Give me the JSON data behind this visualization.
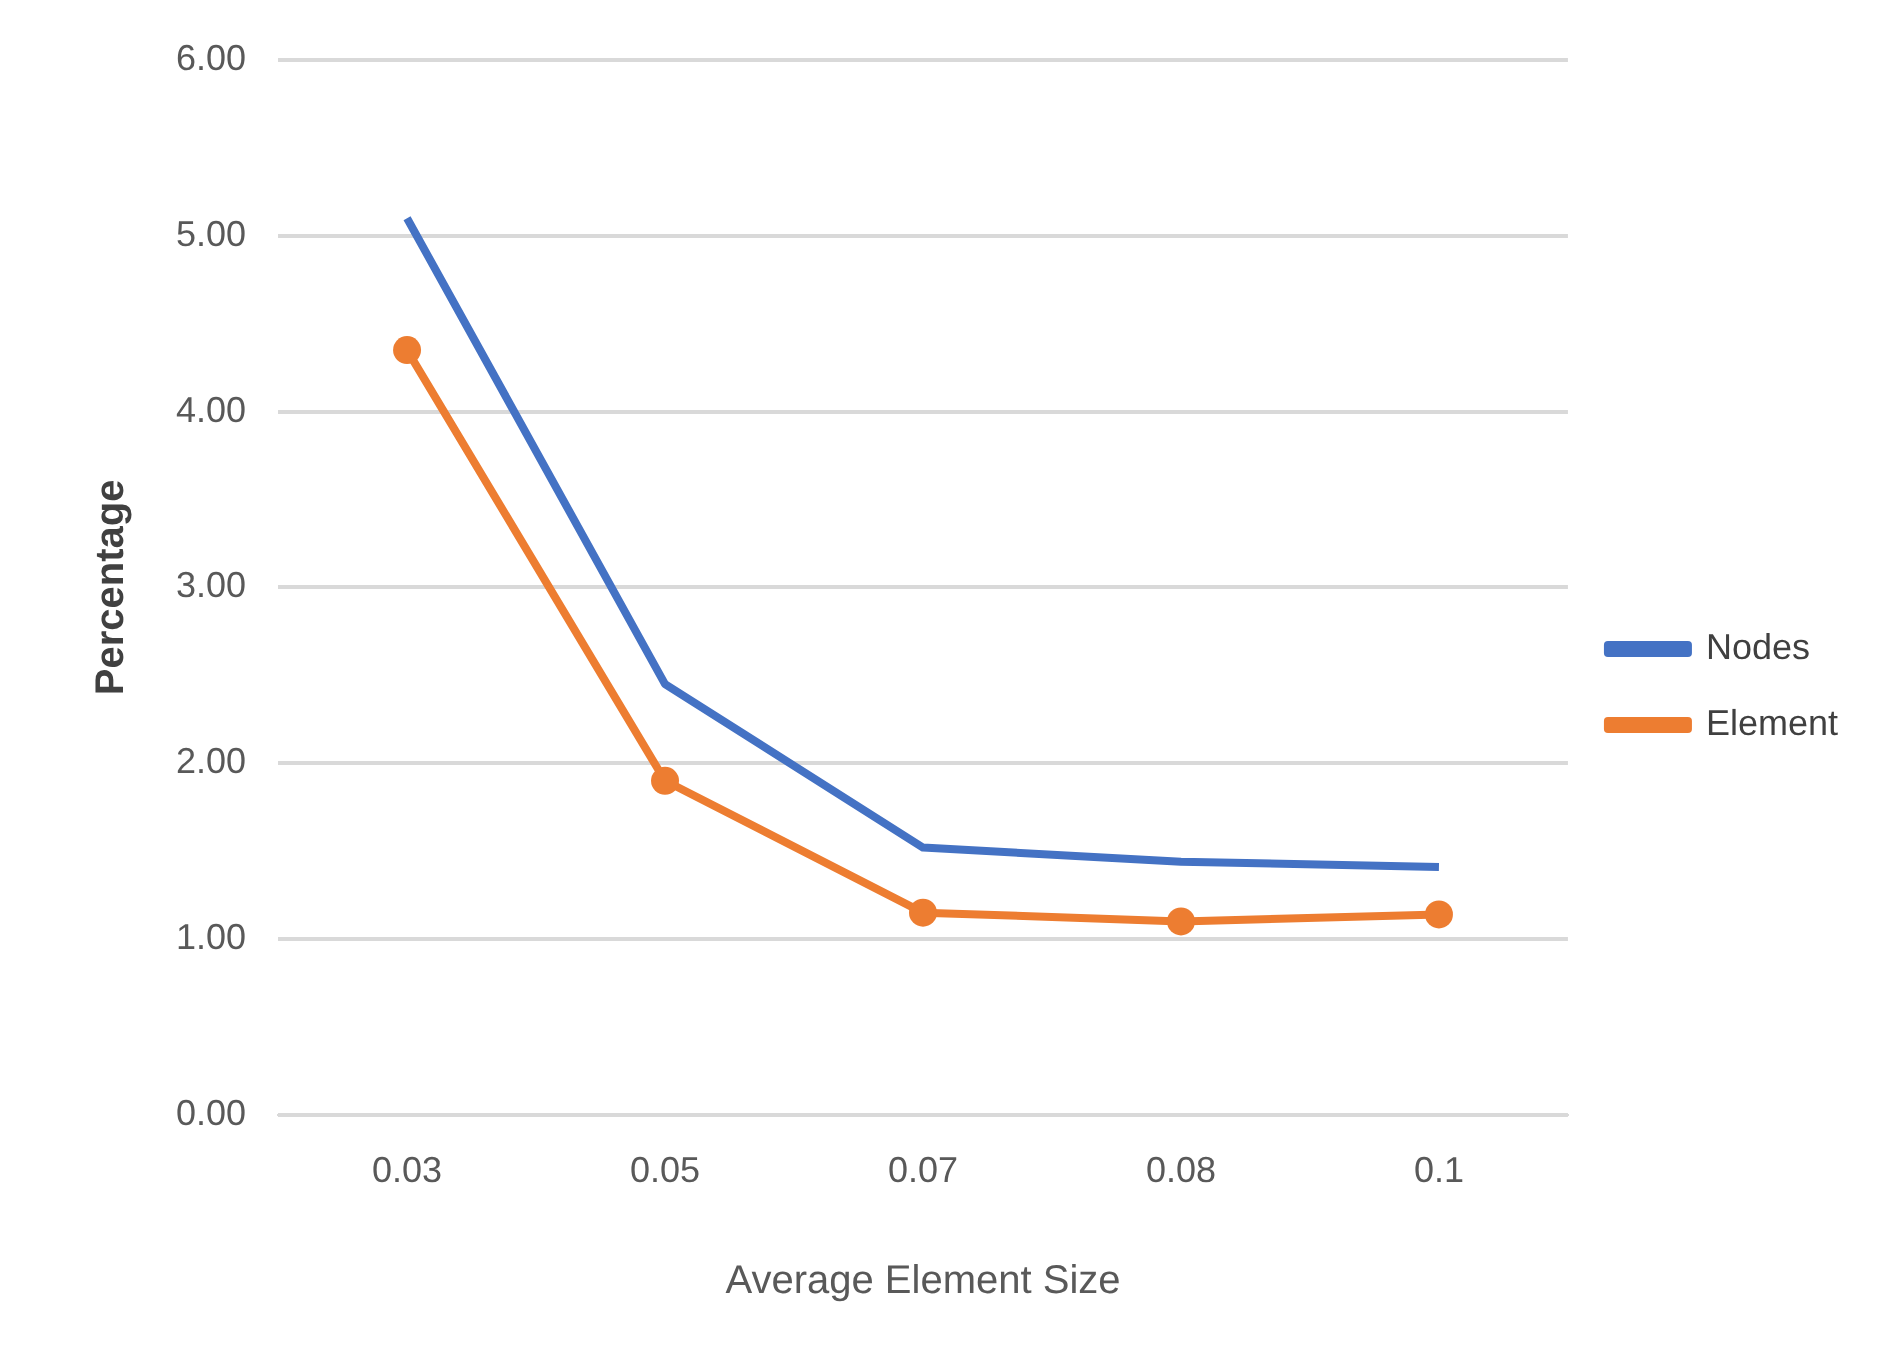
{
  "chart_data": {
    "type": "line",
    "xlabel": "Average Element Size",
    "ylabel": "Percentage",
    "categories": [
      "0.03",
      "0.05",
      "0.07",
      "0.08",
      "0.1"
    ],
    "series": [
      {
        "name": "Nodes",
        "color": "#4472c4",
        "marker": "none",
        "values": [
          5.1,
          2.45,
          1.52,
          1.44,
          1.41
        ]
      },
      {
        "name": "Element",
        "color": "#ed7d31",
        "marker": "circle",
        "values": [
          4.35,
          1.9,
          1.15,
          1.1,
          1.14
        ]
      }
    ],
    "ylim": [
      0,
      6
    ],
    "yticks": [
      {
        "value": 0,
        "label": "0.00"
      },
      {
        "value": 1,
        "label": "1.00"
      },
      {
        "value": 2,
        "label": "2.00"
      },
      {
        "value": 3,
        "label": "3.00"
      },
      {
        "value": 4,
        "label": "4.00"
      },
      {
        "value": 5,
        "label": "5.00"
      },
      {
        "value": 6,
        "label": "6.00"
      }
    ],
    "grid": "y",
    "legend": "right",
    "line_style": "solid"
  }
}
